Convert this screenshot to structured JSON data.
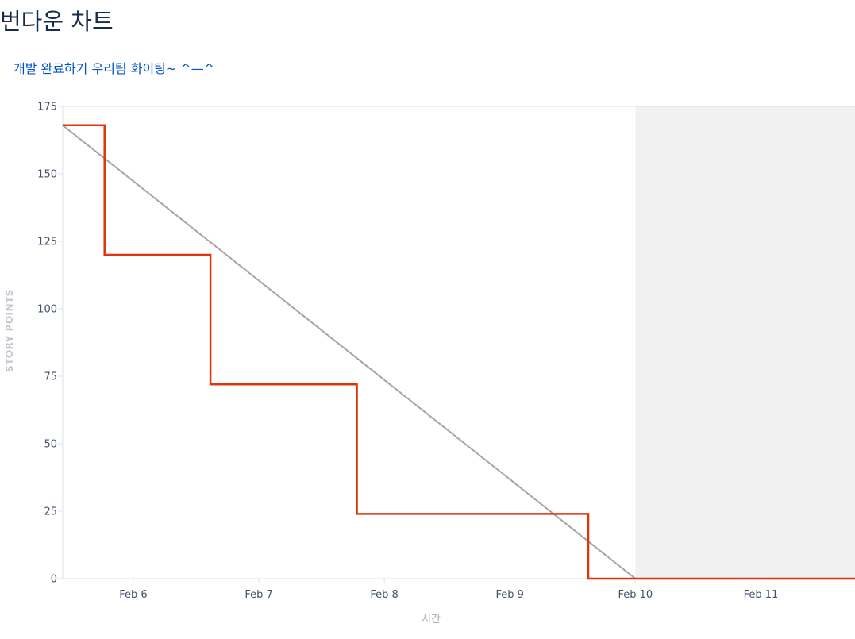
{
  "page": {
    "title": "번다운 차트",
    "sprint_link": "개발 완료하기 우리팀 화이팅~ ^—^"
  },
  "colors": {
    "title": "#172b4d",
    "link": "#0052cc",
    "remaining_line": "#de350b",
    "guideline": "#a5a5a5",
    "non_working_shade": "#f1f1f1",
    "axis": "#dfe1e6"
  },
  "chart_data": {
    "type": "line",
    "title": "",
    "xlabel": "시간",
    "ylabel": "STORY POINTS",
    "x_type": "date",
    "xlim": [
      "2020-02-05T10:30",
      "2020-02-11T18:00"
    ],
    "ylim": [
      0,
      175
    ],
    "y_ticks": [
      0,
      25,
      50,
      75,
      100,
      125,
      150,
      175
    ],
    "x_ticks": [
      {
        "date": "2020-02-06",
        "label": "Feb 6"
      },
      {
        "date": "2020-02-07",
        "label": "Feb 7"
      },
      {
        "date": "2020-02-08",
        "label": "Feb 8"
      },
      {
        "date": "2020-02-09",
        "label": "Feb 9"
      },
      {
        "date": "2020-02-10",
        "label": "Feb 10"
      },
      {
        "date": "2020-02-11",
        "label": "Feb 11"
      }
    ],
    "shaded_ranges": [
      {
        "from": "2020-02-10",
        "to": "2020-02-11T18:00"
      }
    ],
    "series": [
      {
        "kind": "guideline",
        "points": [
          {
            "x": "2020-02-05T10:30",
            "y": 168
          },
          {
            "x": "2020-02-10",
            "y": 0
          }
        ]
      },
      {
        "kind": "remaining",
        "step": true,
        "points": [
          {
            "x": "2020-02-05T10:30",
            "y": 168
          },
          {
            "x": "2020-02-05T18:30",
            "y": 120
          },
          {
            "x": "2020-02-06T14:45",
            "y": 72
          },
          {
            "x": "2020-02-07T18:45",
            "y": 24
          },
          {
            "x": "2020-02-09T15:00",
            "y": 0
          },
          {
            "x": "2020-02-11T18:00",
            "y": 0
          }
        ]
      }
    ]
  }
}
